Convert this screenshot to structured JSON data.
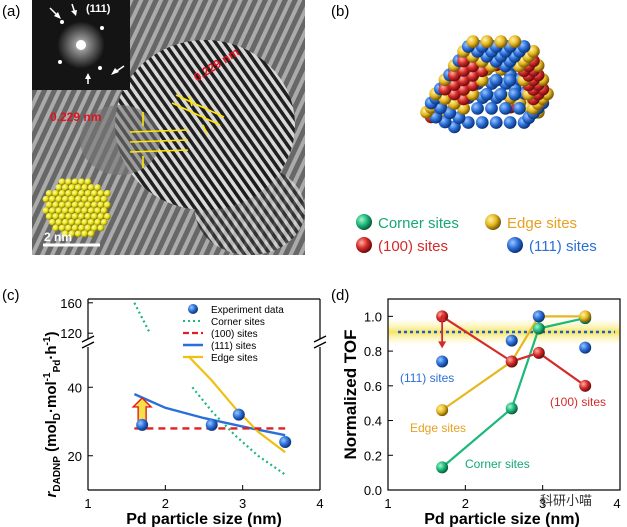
{
  "panels": {
    "a": {
      "label": "(a)",
      "fft_label": "(111)",
      "d_spacing_1": "0.229 nm",
      "d_spacing_2": "0.229 nm",
      "scale_bar": "2 nm"
    },
    "b": {
      "label": "(b)",
      "legend": [
        {
          "label": "Corner sites",
          "color": "#1db87a",
          "text_color": "#17a873"
        },
        {
          "label": "Edge sites",
          "color": "#e6b820",
          "text_color": "#e8a020"
        },
        {
          "label": "(100) sites",
          "color": "#d42a2a",
          "text_color": "#d42a2a"
        },
        {
          "label": "(111) sites",
          "color": "#2a6fd8",
          "text_color": "#2a6fd8"
        }
      ]
    },
    "c": {
      "label": "(c)"
    },
    "d": {
      "label": "(d)"
    }
  },
  "watermark": "科研小喵",
  "chart_data": [
    {
      "id": "c",
      "type": "scatter",
      "title": "",
      "xlabel": "Pd particle size (nm)",
      "ylabel": "rDADNP (molD·mol-1Pd·h-1)",
      "ylabel_parts": {
        "r": "r",
        "sub1": "DADNP",
        "mid": " (mol",
        "sub2": "D",
        "mid2": "·mol",
        "sup1": "-1",
        "sub3": "Pd",
        "end": "·h",
        "sup2": "-1",
        "close": ")"
      },
      "xlim": [
        1,
        4
      ],
      "ylim_lower": [
        10,
        50
      ],
      "ylim_upper": [
        115,
        165
      ],
      "xticks": [
        "1",
        "2",
        "3",
        "4"
      ],
      "yticks_lower": [
        "20",
        "40"
      ],
      "yticks_upper": [
        "120",
        "160"
      ],
      "legend": [
        "Experiment data",
        "Corner sites",
        "(100) sites",
        "(111) sites",
        "Edge sites"
      ],
      "experiment": {
        "x": [
          1.7,
          2.6,
          2.95,
          3.55
        ],
        "y": [
          29,
          29,
          32,
          24
        ]
      },
      "corner_upper": {
        "x": [
          1.6,
          1.8
        ],
        "y": [
          160,
          120
        ]
      },
      "corner_lower": {
        "x": [
          2.35,
          2.6,
          2.9,
          3.2,
          3.55
        ],
        "y": [
          40,
          33,
          26,
          20,
          14.5
        ]
      },
      "sites_100": {
        "x": [
          1.6,
          3.55
        ],
        "y": [
          28,
          28
        ]
      },
      "sites_111": {
        "x": [
          1.6,
          2.0,
          2.5,
          3.0,
          3.55
        ],
        "y": [
          38,
          34,
          31,
          28.5,
          26
        ]
      },
      "edge": {
        "x": [
          2.3,
          2.6,
          2.9,
          3.2,
          3.55
        ],
        "y": [
          49,
          42,
          34,
          27,
          21
        ]
      },
      "arrow": {
        "x": 1.7,
        "y_from": 28,
        "y_to": 36
      }
    },
    {
      "id": "d",
      "type": "line",
      "title": "",
      "xlabel": "Pd particle size (nm)",
      "ylabel": "Normalized TOF",
      "xlim": [
        1,
        4
      ],
      "ylim": [
        0,
        1.1
      ],
      "xticks": [
        "1",
        "2",
        "3",
        "4"
      ],
      "yticks": [
        "0.0",
        "0.2",
        "0.4",
        "0.6",
        "0.8",
        "1.0"
      ],
      "band_value": 0.91,
      "series": [
        {
          "name": "Corner sites",
          "x": [
            1.7,
            2.6,
            2.95,
            3.55
          ],
          "y": [
            0.13,
            0.47,
            0.93,
            0.99
          ],
          "color": "#1db87a"
        },
        {
          "name": "Edge sites",
          "x": [
            1.7,
            2.6,
            2.95,
            3.55
          ],
          "y": [
            0.46,
            0.74,
            1.0,
            1.0
          ],
          "color": "#e6b820"
        },
        {
          "name": "(100) sites",
          "x": [
            1.7,
            2.6,
            2.95,
            3.55
          ],
          "y": [
            1.0,
            0.74,
            0.79,
            0.6
          ],
          "color": "#d42a2a"
        },
        {
          "name": "(111) sites",
          "x": [
            1.7,
            2.6,
            2.95,
            3.55
          ],
          "y": [
            0.74,
            0.86,
            1.0,
            0.82
          ],
          "color": "#2a6fd8"
        }
      ],
      "annotations": [
        "(111) sites",
        "(100) sites",
        "Edge sites",
        "Corner sites"
      ]
    }
  ]
}
